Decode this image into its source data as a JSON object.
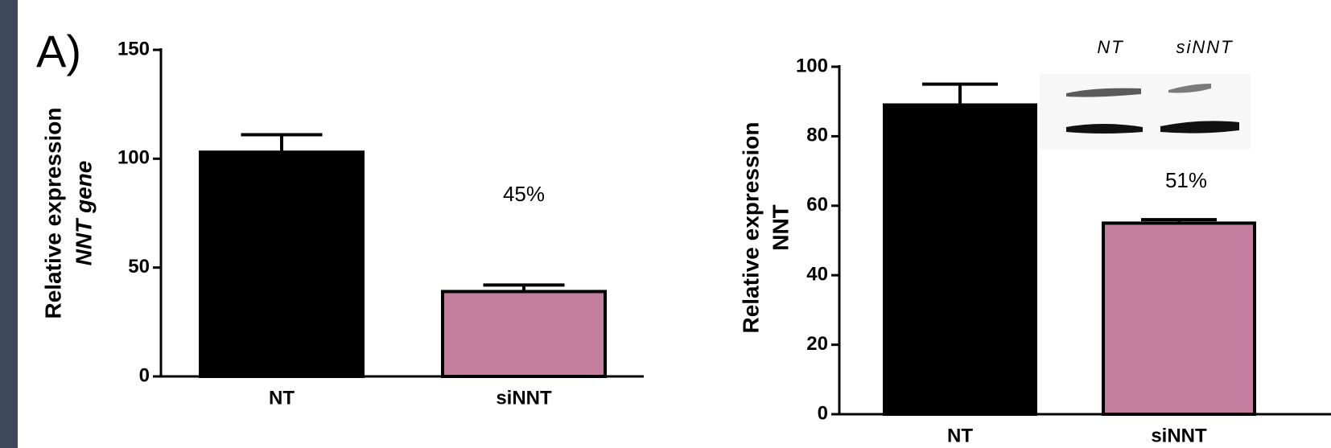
{
  "chart_data": [
    {
      "type": "bar",
      "panel_label": "A)",
      "ylabel": [
        "Relative expression",
        "NNT gene"
      ],
      "categories": [
        "NT",
        "siNNT"
      ],
      "values": [
        103,
        39
      ],
      "errors": [
        8,
        3
      ],
      "colors": [
        "#000000",
        "#c47e9e"
      ],
      "annotation": "45%",
      "ylim": [
        0,
        150
      ],
      "yticks": [
        0,
        50,
        100,
        150
      ]
    },
    {
      "type": "bar",
      "ylabel": [
        "Relative expression",
        "NNT"
      ],
      "categories": [
        "NT",
        "siNNT"
      ],
      "values": [
        89,
        55
      ],
      "errors": [
        6,
        1
      ],
      "colors": [
        "#000000",
        "#c47e9e"
      ],
      "annotation": "51%",
      "inset_labels": [
        "NT",
        "siNNT"
      ],
      "ylim": [
        0,
        100
      ],
      "yticks": [
        0,
        20,
        40,
        60,
        80,
        100
      ]
    }
  ]
}
